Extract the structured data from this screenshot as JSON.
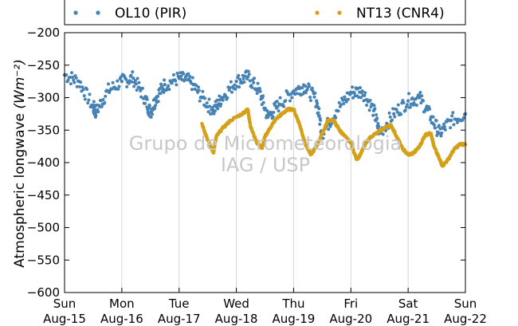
{
  "chart_data": {
    "type": "scatter",
    "ylabel": "Atmospheric longwave",
    "ylabel_unit": "(Wm⁻²)",
    "ylim": [
      -600,
      -200
    ],
    "yticks": [
      -600,
      -550,
      -500,
      -450,
      -400,
      -350,
      -300,
      -250,
      -200
    ],
    "x_unit": "days since Aug-15",
    "xlim": [
      0,
      7
    ],
    "xticks": [
      {
        "day": "Sun",
        "date": "Aug-15"
      },
      {
        "day": "Mon",
        "date": "Aug-16"
      },
      {
        "day": "Tue",
        "date": "Aug-17"
      },
      {
        "day": "Wed",
        "date": "Aug-18"
      },
      {
        "day": "Thu",
        "date": "Aug-19"
      },
      {
        "day": "Fri",
        "date": "Aug-20"
      },
      {
        "day": "Sat",
        "date": "Aug-21"
      },
      {
        "day": "Sun",
        "date": "Aug-22"
      }
    ],
    "grid": "vertical",
    "legend_position": "top",
    "series": [
      {
        "name": "OL10 (PIR)",
        "color": "#4682b4",
        "x": [
          0.0,
          0.25,
          0.5,
          0.55,
          0.75,
          1.0,
          1.2,
          1.4,
          1.5,
          1.6,
          1.75,
          2.0,
          2.2,
          2.4,
          2.6,
          2.75,
          3.0,
          3.2,
          3.4,
          3.55,
          3.75,
          4.0,
          4.2,
          4.4,
          4.5,
          4.75,
          5.0,
          5.2,
          5.4,
          5.5,
          5.75,
          6.0,
          6.2,
          6.4,
          6.55,
          6.75,
          7.0
        ],
        "y": [
          -265,
          -275,
          -315,
          -322,
          -290,
          -275,
          -270,
          -300,
          -323,
          -300,
          -280,
          -270,
          -275,
          -300,
          -320,
          -300,
          -275,
          -268,
          -290,
          -330,
          -310,
          -290,
          -282,
          -305,
          -355,
          -320,
          -292,
          -290,
          -320,
          -355,
          -325,
          -305,
          -300,
          -330,
          -355,
          -335,
          -325
        ]
      },
      {
        "name": "NT13 (CNR4)",
        "color": "#d4a017",
        "x": [
          2.4,
          2.5,
          2.6,
          2.65,
          2.75,
          2.9,
          3.1,
          3.2,
          3.25,
          3.35,
          3.45,
          3.5,
          3.6,
          3.7,
          3.8,
          3.9,
          4.0,
          4.1,
          4.2,
          4.3,
          4.4,
          4.5,
          4.6,
          4.7,
          4.8,
          4.85,
          5.0,
          5.1,
          5.15,
          5.25,
          5.35,
          5.5,
          5.6,
          5.7,
          5.8,
          5.9,
          6.0,
          6.1,
          6.2,
          6.3,
          6.4,
          6.45,
          6.55,
          6.6,
          6.7,
          6.8,
          6.9,
          7.0
        ],
        "y": [
          -340,
          -365,
          -385,
          -360,
          -348,
          -335,
          -325,
          -318,
          -345,
          -368,
          -378,
          -360,
          -345,
          -332,
          -325,
          -318,
          -318,
          -340,
          -370,
          -388,
          -375,
          -355,
          -335,
          -335,
          -350,
          -355,
          -370,
          -395,
          -390,
          -372,
          -360,
          -352,
          -346,
          -342,
          -360,
          -378,
          -388,
          -385,
          -375,
          -357,
          -355,
          -375,
          -395,
          -405,
          -395,
          -380,
          -372,
          -372
        ]
      }
    ]
  },
  "watermark": {
    "line1": "Grupo de Micrometeorologia",
    "line2": "IAG / USP"
  }
}
